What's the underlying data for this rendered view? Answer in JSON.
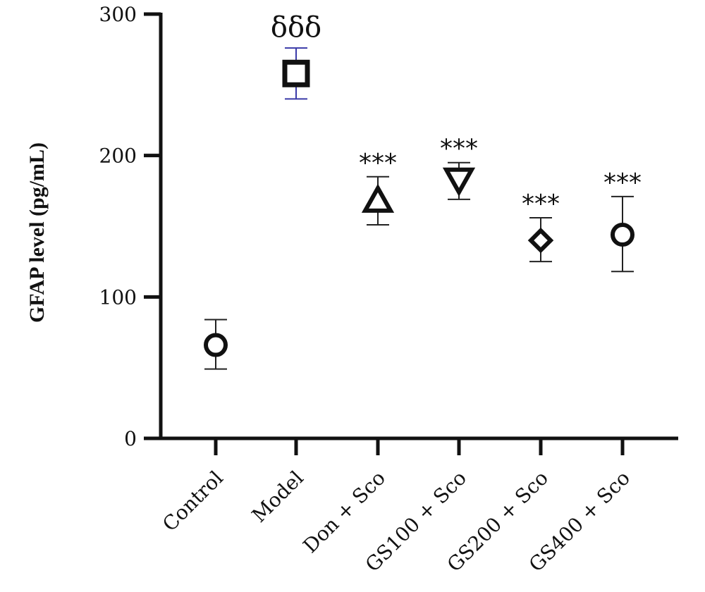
{
  "chart_data": {
    "type": "scatter",
    "ylabel": "GFAP level (pg/mL)",
    "xlabel": "",
    "title": "",
    "ylim": [
      0,
      300
    ],
    "yticks": [
      "0",
      "100",
      "200",
      "300"
    ],
    "categories": [
      "Control",
      "Model",
      "Don + Sco",
      "GS100 + Sco",
      "GS200 + Sco",
      "GS400 + Sco"
    ],
    "values": [
      66,
      258,
      168,
      183,
      140,
      144
    ],
    "error_high": [
      84,
      276,
      185,
      195,
      156,
      171
    ],
    "error_low": [
      49,
      240,
      151,
      169,
      125,
      118
    ],
    "markers": [
      "circle-icon",
      "square-icon",
      "triangle-up-icon",
      "triangle-down-icon",
      "diamond-icon",
      "circle-icon"
    ],
    "annotations": [
      "",
      "δδδ",
      "***",
      "***",
      "***",
      "***"
    ],
    "colors": {
      "axis": "#111111",
      "marker": "#111111",
      "model_errorbar": "#3a3aa8",
      "errorbar": "#222222"
    }
  }
}
